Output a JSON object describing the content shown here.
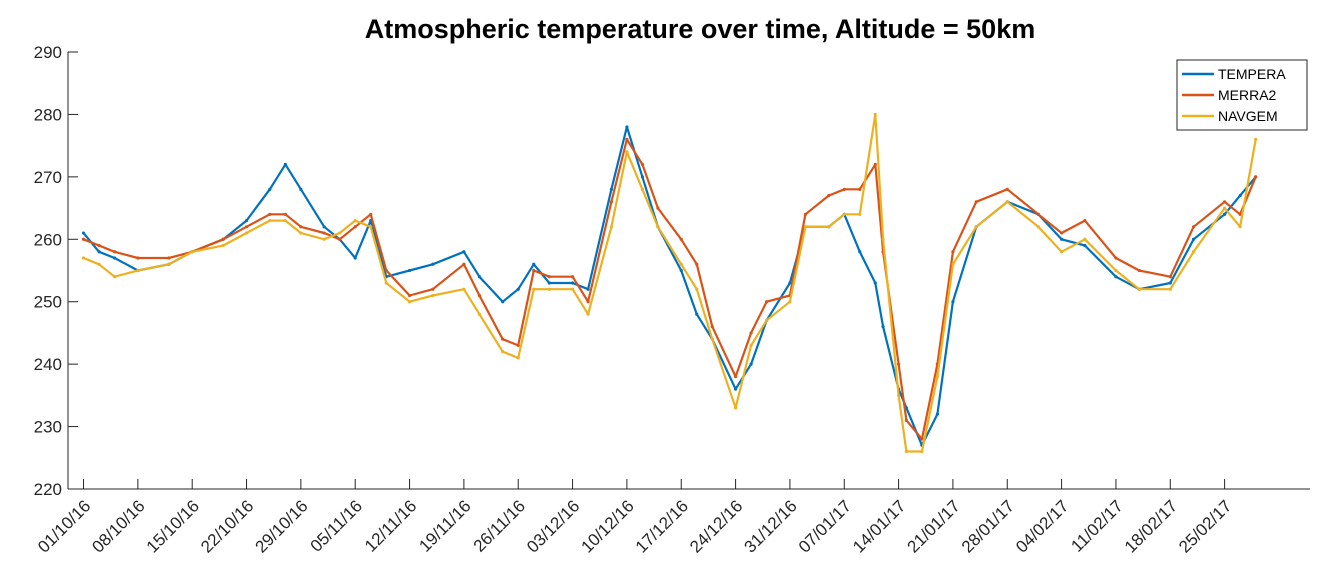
{
  "chart_data": {
    "type": "line",
    "title": "Atmospheric temperature over time, Altitude = 50km",
    "xlabel": "",
    "ylabel": "",
    "ylim": [
      220,
      290
    ],
    "yticks": [
      220,
      230,
      240,
      250,
      260,
      270,
      280,
      290
    ],
    "xlim": [
      "29/09/16",
      "08/03/17"
    ],
    "xticks": [
      "01/10/16",
      "08/10/16",
      "15/10/16",
      "22/10/16",
      "29/10/16",
      "05/11/16",
      "12/11/16",
      "19/11/16",
      "26/11/16",
      "03/12/16",
      "10/12/16",
      "17/12/16",
      "24/12/16",
      "31/12/16",
      "07/01/17",
      "14/01/17",
      "21/01/17",
      "28/01/17",
      "04/02/17",
      "11/02/17",
      "18/02/17",
      "25/02/17"
    ],
    "grid": false,
    "legend_position": "top-right",
    "x": [
      "01/10/16",
      "03/10/16",
      "05/10/16",
      "08/10/16",
      "12/10/16",
      "15/10/16",
      "19/10/16",
      "22/10/16",
      "25/10/16",
      "27/10/16",
      "29/10/16",
      "01/11/16",
      "03/11/16",
      "05/11/16",
      "07/11/16",
      "09/11/16",
      "12/11/16",
      "15/11/16",
      "19/11/16",
      "21/11/16",
      "24/11/16",
      "26/11/16",
      "28/11/16",
      "30/11/16",
      "03/12/16",
      "05/12/16",
      "08/12/16",
      "10/12/16",
      "12/12/16",
      "14/12/16",
      "17/12/16",
      "19/12/16",
      "21/12/16",
      "24/12/16",
      "26/12/16",
      "28/12/16",
      "31/12/16",
      "02/01/17",
      "05/01/17",
      "07/01/17",
      "09/01/17",
      "11/01/17",
      "12/01/17",
      "14/01/17",
      "15/01/17",
      "17/01/17",
      "19/01/17",
      "21/01/17",
      "24/01/17",
      "28/01/17",
      "01/02/17",
      "04/02/17",
      "07/02/17",
      "11/02/17",
      "14/02/17",
      "18/02/17",
      "21/02/17",
      "25/02/17",
      "27/02/17",
      "01/03/17"
    ],
    "series": [
      {
        "name": "TEMPERA",
        "color": "#0072BD",
        "values": [
          261,
          258,
          257,
          255,
          256,
          258,
          260,
          263,
          268,
          272,
          268,
          262,
          260,
          257,
          263,
          254,
          255,
          256,
          258,
          254,
          250,
          252,
          256,
          253,
          253,
          252,
          268,
          278,
          270,
          262,
          255,
          248,
          244,
          236,
          240,
          247,
          253,
          262,
          262,
          264,
          258,
          253,
          246,
          236,
          233,
          227,
          232,
          250,
          262,
          266,
          264,
          260,
          259,
          254,
          252,
          253,
          260,
          264,
          267,
          270
        ]
      },
      {
        "name": "MERRA2",
        "color": "#D95319",
        "values": [
          260,
          259,
          258,
          257,
          257,
          258,
          260,
          262,
          264,
          264,
          262,
          261,
          260,
          262,
          264,
          255,
          251,
          252,
          256,
          251,
          244,
          243,
          255,
          254,
          254,
          250,
          266,
          276,
          272,
          265,
          260,
          256,
          246,
          238,
          245,
          250,
          251,
          264,
          267,
          268,
          268,
          272,
          258,
          240,
          231,
          228,
          240,
          258,
          266,
          268,
          264,
          261,
          263,
          257,
          255,
          254,
          262,
          266,
          264,
          270
        ]
      },
      {
        "name": "NAVGEM",
        "color": "#EDB120",
        "values": [
          257,
          256,
          254,
          255,
          256,
          258,
          259,
          261,
          263,
          263,
          261,
          260,
          261,
          263,
          262,
          253,
          250,
          251,
          252,
          248,
          242,
          241,
          252,
          252,
          252,
          248,
          262,
          274,
          268,
          262,
          256,
          252,
          244,
          233,
          243,
          247,
          250,
          262,
          262,
          264,
          264,
          280,
          260,
          235,
          226,
          226,
          238,
          256,
          262,
          266,
          262,
          258,
          260,
          255,
          252,
          252,
          258,
          265,
          262,
          276
        ]
      }
    ]
  }
}
